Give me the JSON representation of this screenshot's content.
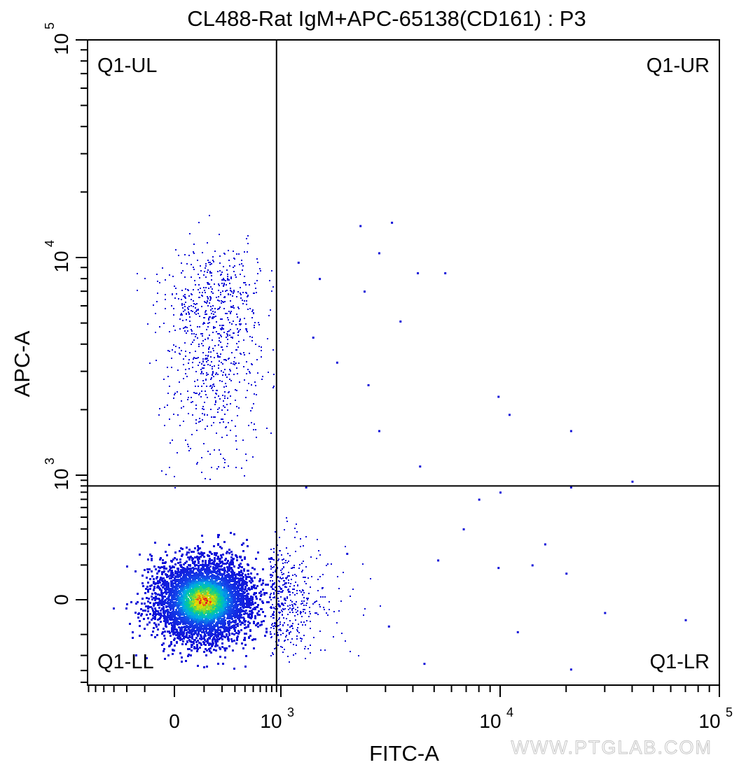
{
  "chart_data": {
    "type": "scatter",
    "title": "CL488-Rat IgM+APC-65138(CD161) : P3",
    "xlabel": "FITC-A",
    "ylabel": "APC-A",
    "x_scale": "biexponential",
    "y_scale": "biexponential",
    "x_ticks": [
      {
        "value": 0,
        "base": "0",
        "exp": ""
      },
      {
        "value": 1000,
        "base": "10",
        "exp": "3"
      },
      {
        "value": 10000,
        "base": "10",
        "exp": "4"
      },
      {
        "value": 100000,
        "base": "10",
        "exp": "5"
      }
    ],
    "y_ticks": [
      {
        "value": 0,
        "base": "0",
        "exp": ""
      },
      {
        "value": 1000,
        "base": "10",
        "exp": "3"
      },
      {
        "value": 10000,
        "base": "10",
        "exp": "4"
      },
      {
        "value": 100000,
        "base": "10",
        "exp": "5"
      }
    ],
    "gates": {
      "x": 900,
      "y": 800
    },
    "quadrants": [
      {
        "id": "UL",
        "label": "Q1-UL"
      },
      {
        "id": "UR",
        "label": "Q1-UR"
      },
      {
        "id": "LL",
        "label": "Q1-LL"
      },
      {
        "id": "LR",
        "label": "Q1-LR"
      }
    ],
    "populations": [
      {
        "name": "main",
        "x_center": 60,
        "y_center": 0,
        "color_map": "density"
      },
      {
        "name": "upper-left",
        "x_center": 150,
        "y_center": 6000,
        "color": "#1010d8"
      }
    ],
    "sparse_points": [
      [
        1200,
        9500
      ],
      [
        1500,
        8000
      ],
      [
        2300,
        14000
      ],
      [
        2400,
        7000
      ],
      [
        2800,
        10500
      ],
      [
        3200,
        14500
      ],
      [
        4200,
        8500
      ],
      [
        5600,
        8500
      ],
      [
        1400,
        4300
      ],
      [
        2500,
        2600
      ],
      [
        2800,
        1600
      ],
      [
        3500,
        5100
      ],
      [
        4300,
        1100
      ],
      [
        9800,
        2300
      ],
      [
        11000,
        1900
      ],
      [
        21000,
        1600
      ],
      [
        40000,
        880
      ],
      [
        21000,
        780
      ],
      [
        1800,
        3300
      ],
      [
        1300,
        780
      ],
      [
        6800,
        300
      ],
      [
        9800,
        90
      ],
      [
        14000,
        100
      ],
      [
        16000,
        200
      ],
      [
        20000,
        70
      ],
      [
        30000,
        -30
      ],
      [
        70000,
        -50
      ],
      [
        12000,
        -90
      ],
      [
        2000,
        150
      ],
      [
        3100,
        -70
      ],
      [
        5200,
        120
      ],
      [
        4500,
        -250
      ],
      [
        21000,
        -290
      ],
      [
        8000,
        600
      ],
      [
        10000,
        700
      ]
    ],
    "colors": {
      "axis": "#000000",
      "gate": "#000000",
      "low": "#1010d8",
      "high": "#e02020"
    }
  },
  "watermark": "WWW.PTGLAB.COM"
}
